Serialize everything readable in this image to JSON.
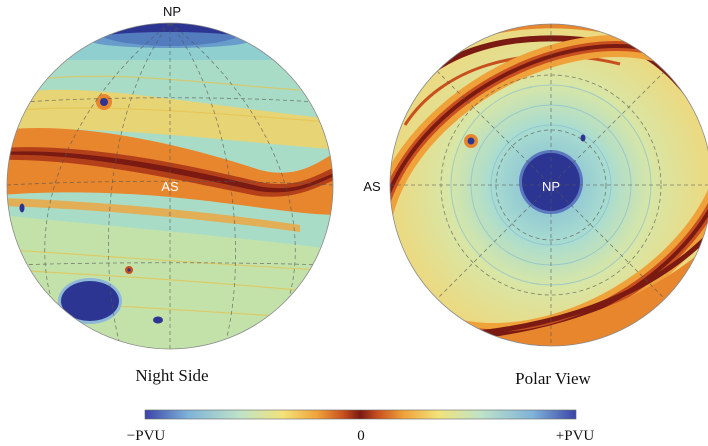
{
  "left_panel": {
    "caption": "Night Side",
    "label_pole": "NP",
    "label_stream": "AS"
  },
  "right_panel": {
    "caption": "Polar View",
    "label_pole": "NP",
    "label_stream": "AS"
  },
  "colorbar": {
    "min_label": "−PVU",
    "mid_label": "0",
    "max_label": "+PVU",
    "stops": [
      "#3a44a8",
      "#7fb3d8",
      "#bfe3c8",
      "#f2e37a",
      "#f0a23a",
      "#c8501e",
      "#7a1a12",
      "#c8501e",
      "#f0a23a",
      "#f2e37a",
      "#bfe3c8",
      "#7fb3d8",
      "#3a44a8"
    ]
  },
  "palette": {
    "background_field": "#a9dcc6",
    "pole_vortex": "#2d3593",
    "jet_core": "#7a1a12",
    "jet_band": "#e8862d",
    "warm_zone": "#f2d266"
  }
}
